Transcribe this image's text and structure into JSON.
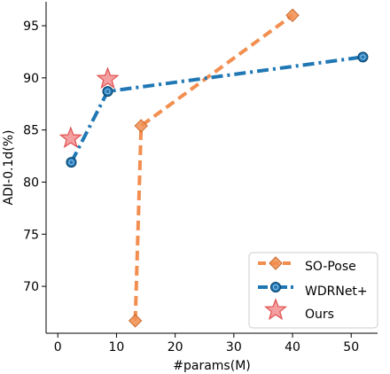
{
  "chart_data": {
    "type": "line",
    "title": "",
    "xlabel": "#params(M)",
    "ylabel": "ADI-0.1d(%)",
    "xlim": [
      -2,
      54.5
    ],
    "ylim": [
      65.5,
      97.3
    ],
    "xticks": [
      0,
      10,
      20,
      30,
      40,
      50
    ],
    "yticks": [
      70,
      75,
      80,
      85,
      90,
      95
    ],
    "grid": false,
    "legend_position": "lower-right",
    "series": [
      {
        "name": "SO-Pose",
        "color": "#f28e4f",
        "line_style": "dashed",
        "marker": "diamond",
        "x": [
          13.2,
          14.2,
          40.0
        ],
        "y": [
          66.7,
          85.4,
          96.0
        ]
      },
      {
        "name": "WDRNet+",
        "color": "#1f77b4",
        "line_style": "dash-dot",
        "marker": "circle",
        "x": [
          2.3,
          8.5,
          52.0
        ],
        "y": [
          81.9,
          88.7,
          92.0
        ]
      },
      {
        "name": "Ours",
        "color": "#f26b6b",
        "line_style": "none",
        "marker": "star",
        "x": [
          2.2,
          8.5
        ],
        "y": [
          84.2,
          89.9
        ]
      }
    ]
  }
}
